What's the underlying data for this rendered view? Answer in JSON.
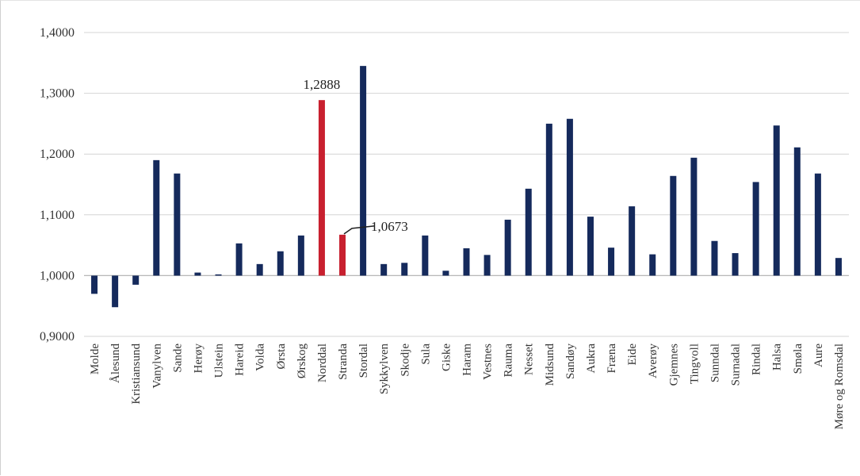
{
  "chart_data": {
    "type": "bar",
    "title": "",
    "xlabel": "",
    "ylabel": "",
    "ylim": [
      0.9,
      1.4
    ],
    "yticks": [
      "0,9000",
      "1,0000",
      "1,1000",
      "1,2000",
      "1,3000",
      "1,4000"
    ],
    "baseline": 1.0,
    "grid": true,
    "legend": "none",
    "categories": [
      "Molde",
      "Ålesund",
      "Kristiansund",
      "Vanylven",
      "Sande",
      "Herøy",
      "Ulstein",
      "Hareid",
      "Volda",
      "Ørsta",
      "Ørskog",
      "Norddal",
      "Stranda",
      "Stordal",
      "Sykkylven",
      "Skodje",
      "Sula",
      "Giske",
      "Haram",
      "Vestnes",
      "Rauma",
      "Nesset",
      "Midsund",
      "Sandøy",
      "Aukra",
      "Fræna",
      "Eide",
      "Averøy",
      "Gjemnes",
      "Tingvoll",
      "Sunndal",
      "Surnadal",
      "Rindal",
      "Halsa",
      "Smøla",
      "Aure",
      "Møre og Romsdal"
    ],
    "values": [
      0.97,
      0.948,
      0.985,
      1.19,
      1.168,
      1.005,
      1.002,
      1.053,
      1.019,
      1.04,
      1.066,
      1.2888,
      1.0673,
      1.345,
      1.019,
      1.021,
      1.066,
      1.008,
      1.045,
      1.034,
      1.092,
      1.143,
      1.25,
      1.258,
      1.097,
      1.046,
      1.114,
      1.035,
      1.164,
      1.194,
      1.057,
      1.037,
      1.154,
      1.247,
      1.211,
      1.168,
      1.029
    ],
    "highlighted": [
      "Norddal",
      "Stranda"
    ],
    "annotations": [
      {
        "category": "Norddal",
        "text": "1,2888"
      },
      {
        "category": "Stranda",
        "text": "1,0673"
      }
    ],
    "colors": {
      "default": "#152a5c",
      "highlight": "#c8202f",
      "grid": "#d4d4d4",
      "axis": "#b8b8b8"
    }
  }
}
